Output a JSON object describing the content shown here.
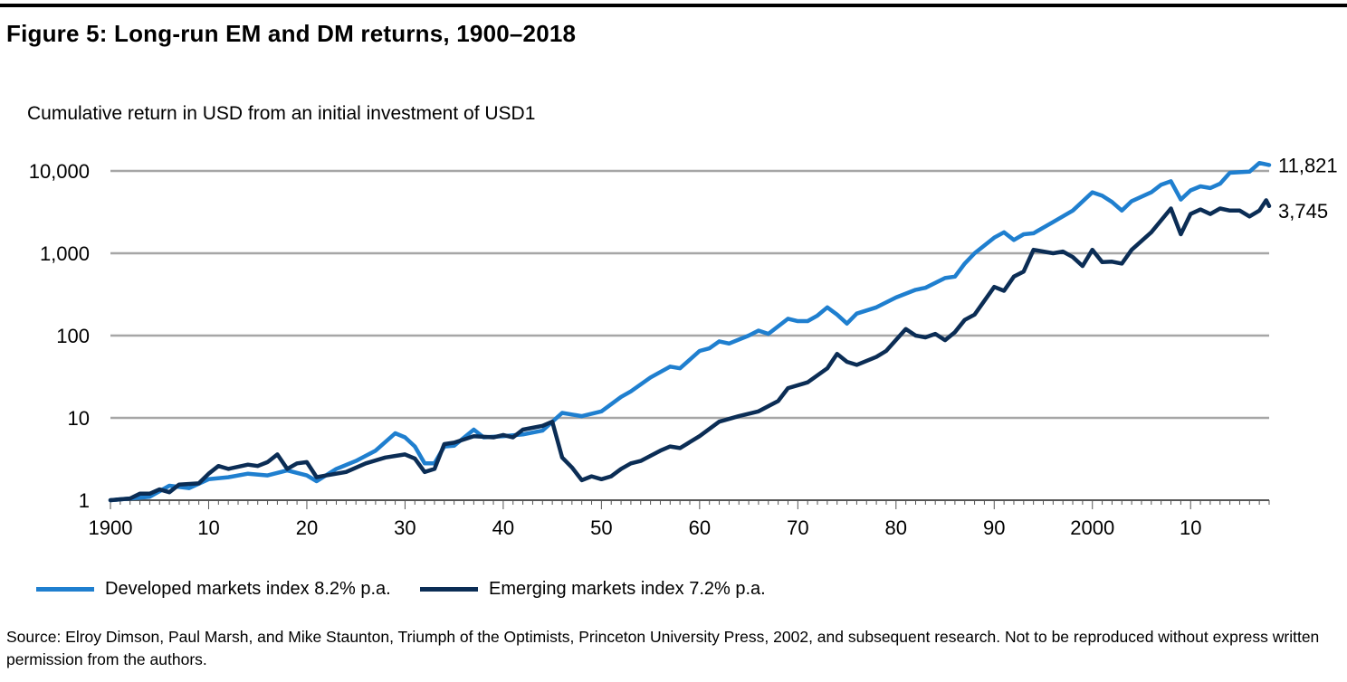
{
  "title": "Figure 5: Long-run EM and DM returns, 1900–2018",
  "subtitle": "Cumulative return in USD from an initial investment  of USD1",
  "source": "Source: Elroy Dimson, Paul Marsh, and Mike Staunton, Triumph of the Optimists, Princeton University Press, 2002, and subsequent research. Not to be reproduced without express written permission from the authors.",
  "colors": {
    "developed": "#1f7fcf",
    "emerging": "#0b2d55",
    "grid": "#a6a6a6",
    "axis": "#555555"
  },
  "chart_data": {
    "type": "line",
    "y_scale": "log",
    "ylim": [
      1,
      10000
    ],
    "xlim": [
      1900,
      2018
    ],
    "y_ticks": [
      1,
      10,
      100,
      1000,
      10000
    ],
    "y_tick_labels": [
      "1",
      "10",
      "100",
      "1,000",
      "10,000"
    ],
    "x_ticks": [
      1900,
      1910,
      1920,
      1930,
      1940,
      1950,
      1960,
      1970,
      1980,
      1990,
      2000,
      2010
    ],
    "x_tick_labels": [
      "1900",
      "10",
      "20",
      "30",
      "40",
      "50",
      "60",
      "70",
      "80",
      "90",
      "2000",
      "10"
    ],
    "grid": "horizontal",
    "legend_position": "bottom",
    "series": [
      {
        "name": "Developed markets index 8.2% p.a.",
        "color": "#1f7fcf",
        "end_label": "11,821",
        "points": [
          [
            1900,
            1
          ],
          [
            1902,
            1.05
          ],
          [
            1904,
            1.1
          ],
          [
            1906,
            1.5
          ],
          [
            1908,
            1.4
          ],
          [
            1910,
            1.8
          ],
          [
            1912,
            1.9
          ],
          [
            1914,
            2.1
          ],
          [
            1916,
            2.0
          ],
          [
            1918,
            2.3
          ],
          [
            1920,
            2.0
          ],
          [
            1921,
            1.7
          ],
          [
            1923,
            2.4
          ],
          [
            1925,
            3.0
          ],
          [
            1927,
            4.0
          ],
          [
            1929,
            6.5
          ],
          [
            1930,
            5.8
          ],
          [
            1931,
            4.5
          ],
          [
            1932,
            2.8
          ],
          [
            1933,
            2.8
          ],
          [
            1934,
            4.5
          ],
          [
            1935,
            4.6
          ],
          [
            1937,
            7.2
          ],
          [
            1938,
            5.8
          ],
          [
            1940,
            6.0
          ],
          [
            1942,
            6.3
          ],
          [
            1944,
            7.0
          ],
          [
            1946,
            11.5
          ],
          [
            1948,
            10.5
          ],
          [
            1950,
            12.0
          ],
          [
            1952,
            18.0
          ],
          [
            1953,
            21.0
          ],
          [
            1955,
            31.0
          ],
          [
            1957,
            42.0
          ],
          [
            1958,
            40.0
          ],
          [
            1960,
            65.0
          ],
          [
            1961,
            70.0
          ],
          [
            1962,
            85.0
          ],
          [
            1963,
            80.0
          ],
          [
            1965,
            100.0
          ],
          [
            1966,
            115.0
          ],
          [
            1967,
            105.0
          ],
          [
            1969,
            160.0
          ],
          [
            1970,
            150.0
          ],
          [
            1971,
            150.0
          ],
          [
            1972,
            175.0
          ],
          [
            1973,
            220.0
          ],
          [
            1974,
            180.0
          ],
          [
            1975,
            140.0
          ],
          [
            1976,
            185.0
          ],
          [
            1978,
            220.0
          ],
          [
            1980,
            290.0
          ],
          [
            1982,
            360.0
          ],
          [
            1983,
            380.0
          ],
          [
            1985,
            500.0
          ],
          [
            1986,
            520.0
          ],
          [
            1987,
            750.0
          ],
          [
            1988,
            1000.0
          ],
          [
            1990,
            1550.0
          ],
          [
            1991,
            1800.0
          ],
          [
            1992,
            1450.0
          ],
          [
            1993,
            1700.0
          ],
          [
            1994,
            1750.0
          ],
          [
            1996,
            2400.0
          ],
          [
            1998,
            3300.0
          ],
          [
            2000,
            5500.0
          ],
          [
            2001,
            5000.0
          ],
          [
            2002,
            4200.0
          ],
          [
            2003,
            3300.0
          ],
          [
            2004,
            4300.0
          ],
          [
            2006,
            5500.0
          ],
          [
            2007,
            6800.0
          ],
          [
            2008,
            7500.0
          ],
          [
            2009,
            4500.0
          ],
          [
            2010,
            5800.0
          ],
          [
            2011,
            6500.0
          ],
          [
            2012,
            6200.0
          ],
          [
            2013,
            7000.0
          ],
          [
            2014,
            9500.0
          ],
          [
            2016,
            9800.0
          ],
          [
            2017,
            12500.0
          ],
          [
            2018,
            11821.0
          ]
        ]
      },
      {
        "name": "Emerging markets index 7.2% p.a.",
        "color": "#0b2d55",
        "end_label": "3,745",
        "points": [
          [
            1900,
            1
          ],
          [
            1902,
            1.05
          ],
          [
            1903,
            1.2
          ],
          [
            1904,
            1.2
          ],
          [
            1905,
            1.35
          ],
          [
            1906,
            1.25
          ],
          [
            1907,
            1.55
          ],
          [
            1909,
            1.6
          ],
          [
            1910,
            2.1
          ],
          [
            1911,
            2.6
          ],
          [
            1912,
            2.4
          ],
          [
            1914,
            2.7
          ],
          [
            1915,
            2.6
          ],
          [
            1916,
            2.9
          ],
          [
            1917,
            3.6
          ],
          [
            1918,
            2.4
          ],
          [
            1919,
            2.8
          ],
          [
            1920,
            2.9
          ],
          [
            1921,
            1.9
          ],
          [
            1922,
            2.0
          ],
          [
            1924,
            2.2
          ],
          [
            1926,
            2.8
          ],
          [
            1928,
            3.3
          ],
          [
            1930,
            3.6
          ],
          [
            1931,
            3.2
          ],
          [
            1932,
            2.2
          ],
          [
            1933,
            2.4
          ],
          [
            1934,
            4.8
          ],
          [
            1935,
            5.0
          ],
          [
            1937,
            6.0
          ],
          [
            1939,
            5.8
          ],
          [
            1940,
            6.2
          ],
          [
            1941,
            5.8
          ],
          [
            1942,
            7.2
          ],
          [
            1944,
            8.0
          ],
          [
            1945,
            9.0
          ],
          [
            1946,
            3.3
          ],
          [
            1947,
            2.5
          ],
          [
            1948,
            1.75
          ],
          [
            1949,
            1.95
          ],
          [
            1950,
            1.8
          ],
          [
            1951,
            1.95
          ],
          [
            1952,
            2.4
          ],
          [
            1953,
            2.8
          ],
          [
            1954,
            3.0
          ],
          [
            1956,
            4.0
          ],
          [
            1957,
            4.5
          ],
          [
            1958,
            4.3
          ],
          [
            1960,
            6.0
          ],
          [
            1962,
            9.0
          ],
          [
            1964,
            10.5
          ],
          [
            1966,
            12.0
          ],
          [
            1968,
            16.0
          ],
          [
            1969,
            23.0
          ],
          [
            1971,
            27.0
          ],
          [
            1973,
            40.0
          ],
          [
            1974,
            60.0
          ],
          [
            1975,
            48.0
          ],
          [
            1976,
            44.0
          ],
          [
            1978,
            55.0
          ],
          [
            1979,
            65.0
          ],
          [
            1981,
            120.0
          ],
          [
            1982,
            100.0
          ],
          [
            1983,
            95.0
          ],
          [
            1984,
            105.0
          ],
          [
            1985,
            88.0
          ],
          [
            1986,
            110.0
          ],
          [
            1987,
            155.0
          ],
          [
            1988,
            180.0
          ],
          [
            1990,
            390.0
          ],
          [
            1991,
            350.0
          ],
          [
            1992,
            520.0
          ],
          [
            1993,
            600.0
          ],
          [
            1994,
            1100.0
          ],
          [
            1996,
            1000.0
          ],
          [
            1997,
            1050.0
          ],
          [
            1998,
            900.0
          ],
          [
            1999,
            700.0
          ],
          [
            2000,
            1100.0
          ],
          [
            2001,
            780.0
          ],
          [
            2002,
            790.0
          ],
          [
            2003,
            750.0
          ],
          [
            2004,
            1100.0
          ],
          [
            2006,
            1800.0
          ],
          [
            2008,
            3500.0
          ],
          [
            2009,
            1700.0
          ],
          [
            2010,
            3000.0
          ],
          [
            2011,
            3400.0
          ],
          [
            2012,
            3000.0
          ],
          [
            2013,
            3500.0
          ],
          [
            2014,
            3300.0
          ],
          [
            2015,
            3300.0
          ],
          [
            2016,
            2800.0
          ],
          [
            2017,
            3300.0
          ],
          [
            2017.7,
            4400.0
          ],
          [
            2018,
            3745.0
          ]
        ]
      }
    ]
  }
}
